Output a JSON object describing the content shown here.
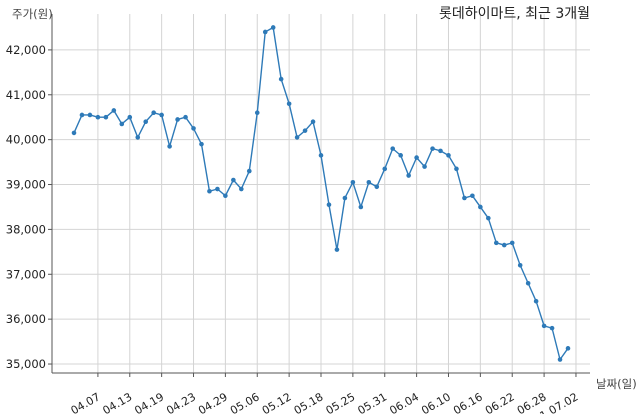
{
  "chart_data": {
    "type": "line",
    "title": "롯데하이마트, 최근 3개월",
    "ylabel": "주가(원)",
    "xlabel": "날짜(일)",
    "ylim": [
      34800,
      42800
    ],
    "yticks": [
      35000,
      36000,
      37000,
      38000,
      39000,
      40000,
      41000,
      42000
    ],
    "ytick_labels": [
      "35,000",
      "36,000",
      "37,000",
      "38,000",
      "39,000",
      "40,000",
      "41,000",
      "42,000"
    ],
    "xtick_labels": [
      "04.07",
      "04.13",
      "04.19",
      "04.23",
      "04.29",
      "05.06",
      "05.12",
      "05.18",
      "05.25",
      "05.31",
      "06.04",
      "06.10",
      "06.16",
      "06.22",
      "06.28",
      "21.07.02"
    ],
    "xtick_index": [
      3,
      7,
      11,
      15,
      19,
      23,
      27,
      31,
      35,
      39,
      43,
      47,
      51,
      55,
      59,
      63
    ],
    "grid": true,
    "line_color": "#2e7ab8",
    "series": [
      {
        "values": [
          40150,
          40550,
          40550,
          40500,
          40500,
          40650,
          40350,
          40500,
          40050,
          40400,
          40600,
          40550,
          39850,
          40450,
          40500,
          40250,
          39900,
          38850,
          38900,
          38750,
          39100,
          38900,
          39300,
          40600,
          42400,
          42500,
          41350,
          40800,
          40050,
          40200,
          40400,
          39650,
          38550,
          37550,
          38700,
          39050,
          38500,
          39050,
          38950,
          39350,
          39800,
          39650,
          39200,
          39600,
          39400,
          39800,
          39750,
          39650,
          39350,
          38700,
          38750,
          38500,
          38250,
          37700,
          37650,
          37700,
          37200,
          36800,
          36400,
          35850,
          35800,
          35100,
          35350
        ]
      }
    ]
  }
}
